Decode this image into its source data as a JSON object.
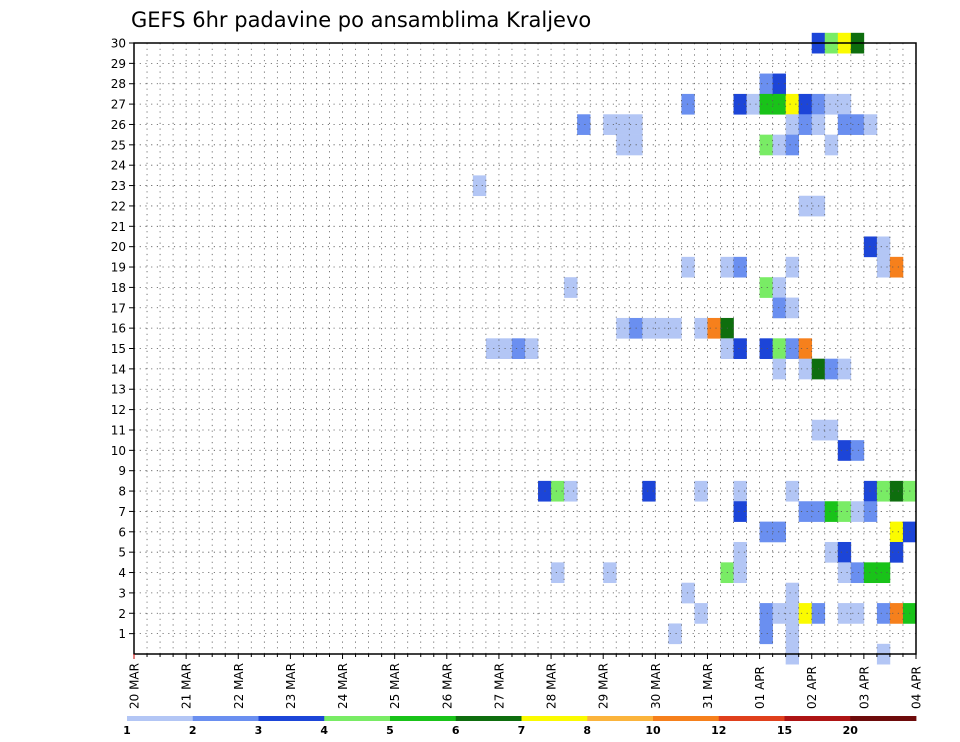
{
  "chart_data": {
    "type": "heatmap",
    "title": "GEFS 6hr padavine po ansamblima Kraljevo",
    "xlabel": "",
    "ylabel": "",
    "y_members": [
      1,
      30
    ],
    "y_ticks": [
      "1",
      "2",
      "3",
      "4",
      "5",
      "6",
      "7",
      "8",
      "9",
      "10",
      "11",
      "12",
      "13",
      "14",
      "15",
      "16",
      "17",
      "18",
      "19",
      "20",
      "21",
      "22",
      "23",
      "24",
      "25",
      "26",
      "27",
      "28",
      "29",
      "30"
    ],
    "x_ticks": [
      "20 MAR",
      "21 MAR",
      "22 MAR",
      "23 MAR",
      "24 MAR",
      "25 MAR",
      "26 MAR",
      "27 MAR",
      "28 MAR",
      "29 MAR",
      "30 MAR",
      "31 MAR",
      "01 APR",
      "02 APR",
      "03 APR",
      "04 APR"
    ],
    "time_steps": 60,
    "steps_per_day": 4,
    "grid": true,
    "legend": "bottom",
    "colorbar": {
      "labels": [
        "1",
        "2",
        "3",
        "4",
        "5",
        "6",
        "7",
        "8",
        "10",
        "12",
        "15",
        "20"
      ],
      "colors": [
        "#b3c6f5",
        "#6a8ff0",
        "#1c45d8",
        "#79ec65",
        "#19c319",
        "#0e6e0e",
        "#fbfb00",
        "#fbb43c",
        "#f6801c",
        "#e0401c",
        "#ae1414",
        "#6e0b0b"
      ]
    },
    "cells": [
      {
        "member": 30,
        "step": 52,
        "value": 3
      },
      {
        "member": 30,
        "step": 53,
        "value": 4
      },
      {
        "member": 30,
        "step": 54,
        "value": 7
      },
      {
        "member": 30,
        "step": 55,
        "value": 6
      },
      {
        "member": 28,
        "step": 48,
        "value": 2
      },
      {
        "member": 28,
        "step": 49,
        "value": 3
      },
      {
        "member": 27,
        "step": 42,
        "value": 2
      },
      {
        "member": 27,
        "step": 46,
        "value": 3
      },
      {
        "member": 27,
        "step": 47,
        "value": 1
      },
      {
        "member": 27,
        "step": 48,
        "value": 5
      },
      {
        "member": 27,
        "step": 49,
        "value": 5
      },
      {
        "member": 27,
        "step": 50,
        "value": 7
      },
      {
        "member": 27,
        "step": 51,
        "value": 3
      },
      {
        "member": 27,
        "step": 52,
        "value": 2
      },
      {
        "member": 27,
        "step": 53,
        "value": 1
      },
      {
        "member": 27,
        "step": 54,
        "value": 1
      },
      {
        "member": 26,
        "step": 34,
        "value": 2
      },
      {
        "member": 26,
        "step": 36,
        "value": 1
      },
      {
        "member": 26,
        "step": 37,
        "value": 1
      },
      {
        "member": 26,
        "step": 38,
        "value": 1
      },
      {
        "member": 26,
        "step": 50,
        "value": 1
      },
      {
        "member": 26,
        "step": 51,
        "value": 2
      },
      {
        "member": 26,
        "step": 52,
        "value": 1
      },
      {
        "member": 26,
        "step": 54,
        "value": 2
      },
      {
        "member": 26,
        "step": 55,
        "value": 2
      },
      {
        "member": 26,
        "step": 56,
        "value": 1
      },
      {
        "member": 25,
        "step": 37,
        "value": 1
      },
      {
        "member": 25,
        "step": 38,
        "value": 1
      },
      {
        "member": 25,
        "step": 48,
        "value": 4
      },
      {
        "member": 25,
        "step": 49,
        "value": 1
      },
      {
        "member": 25,
        "step": 50,
        "value": 2
      },
      {
        "member": 25,
        "step": 53,
        "value": 1
      },
      {
        "member": 23,
        "step": 26,
        "value": 1
      },
      {
        "member": 22,
        "step": 51,
        "value": 1
      },
      {
        "member": 22,
        "step": 52,
        "value": 1
      },
      {
        "member": 20,
        "step": 56,
        "value": 3
      },
      {
        "member": 20,
        "step": 57,
        "value": 1
      },
      {
        "member": 19,
        "step": 42,
        "value": 1
      },
      {
        "member": 19,
        "step": 45,
        "value": 1
      },
      {
        "member": 19,
        "step": 46,
        "value": 2
      },
      {
        "member": 19,
        "step": 50,
        "value": 1
      },
      {
        "member": 19,
        "step": 57,
        "value": 1
      },
      {
        "member": 19,
        "step": 58,
        "value": 10
      },
      {
        "member": 18,
        "step": 33,
        "value": 1
      },
      {
        "member": 18,
        "step": 48,
        "value": 4
      },
      {
        "member": 18,
        "step": 49,
        "value": 1
      },
      {
        "member": 17,
        "step": 49,
        "value": 2
      },
      {
        "member": 17,
        "step": 50,
        "value": 1
      },
      {
        "member": 16,
        "step": 37,
        "value": 1
      },
      {
        "member": 16,
        "step": 38,
        "value": 2
      },
      {
        "member": 16,
        "step": 39,
        "value": 1
      },
      {
        "member": 16,
        "step": 40,
        "value": 1
      },
      {
        "member": 16,
        "step": 41,
        "value": 1
      },
      {
        "member": 16,
        "step": 43,
        "value": 1
      },
      {
        "member": 16,
        "step": 44,
        "value": 10
      },
      {
        "member": 16,
        "step": 45,
        "value": 6
      },
      {
        "member": 15,
        "step": 27,
        "value": 1
      },
      {
        "member": 15,
        "step": 28,
        "value": 1
      },
      {
        "member": 15,
        "step": 29,
        "value": 2
      },
      {
        "member": 15,
        "step": 30,
        "value": 1
      },
      {
        "member": 15,
        "step": 45,
        "value": 1
      },
      {
        "member": 15,
        "step": 46,
        "value": 3
      },
      {
        "member": 15,
        "step": 48,
        "value": 3
      },
      {
        "member": 15,
        "step": 49,
        "value": 4
      },
      {
        "member": 15,
        "step": 50,
        "value": 2
      },
      {
        "member": 15,
        "step": 51,
        "value": 10
      },
      {
        "member": 14,
        "step": 49,
        "value": 1
      },
      {
        "member": 14,
        "step": 51,
        "value": 1
      },
      {
        "member": 14,
        "step": 52,
        "value": 6
      },
      {
        "member": 14,
        "step": 53,
        "value": 2
      },
      {
        "member": 14,
        "step": 54,
        "value": 1
      },
      {
        "member": 11,
        "step": 52,
        "value": 1
      },
      {
        "member": 11,
        "step": 53,
        "value": 1
      },
      {
        "member": 10,
        "step": 54,
        "value": 3
      },
      {
        "member": 10,
        "step": 55,
        "value": 2
      },
      {
        "member": 8,
        "step": 31,
        "value": 3
      },
      {
        "member": 8,
        "step": 32,
        "value": 4
      },
      {
        "member": 8,
        "step": 33,
        "value": 1
      },
      {
        "member": 8,
        "step": 39,
        "value": 3
      },
      {
        "member": 8,
        "step": 43,
        "value": 1
      },
      {
        "member": 8,
        "step": 46,
        "value": 1
      },
      {
        "member": 8,
        "step": 50,
        "value": 1
      },
      {
        "member": 8,
        "step": 56,
        "value": 3
      },
      {
        "member": 8,
        "step": 57,
        "value": 4
      },
      {
        "member": 8,
        "step": 58,
        "value": 6
      },
      {
        "member": 8,
        "step": 59,
        "value": 4
      },
      {
        "member": 7,
        "step": 46,
        "value": 3
      },
      {
        "member": 7,
        "step": 51,
        "value": 2
      },
      {
        "member": 7,
        "step": 52,
        "value": 2
      },
      {
        "member": 7,
        "step": 53,
        "value": 5
      },
      {
        "member": 7,
        "step": 54,
        "value": 4
      },
      {
        "member": 7,
        "step": 55,
        "value": 1
      },
      {
        "member": 7,
        "step": 56,
        "value": 2
      },
      {
        "member": 6,
        "step": 48,
        "value": 2
      },
      {
        "member": 6,
        "step": 49,
        "value": 2
      },
      {
        "member": 6,
        "step": 58,
        "value": 7
      },
      {
        "member": 6,
        "step": 59,
        "value": 3
      },
      {
        "member": 5,
        "step": 46,
        "value": 1
      },
      {
        "member": 5,
        "step": 53,
        "value": 1
      },
      {
        "member": 5,
        "step": 54,
        "value": 3
      },
      {
        "member": 5,
        "step": 58,
        "value": 3
      },
      {
        "member": 4,
        "step": 32,
        "value": 1
      },
      {
        "member": 4,
        "step": 36,
        "value": 1
      },
      {
        "member": 4,
        "step": 45,
        "value": 4
      },
      {
        "member": 4,
        "step": 46,
        "value": 1
      },
      {
        "member": 4,
        "step": 54,
        "value": 1
      },
      {
        "member": 4,
        "step": 55,
        "value": 2
      },
      {
        "member": 4,
        "step": 56,
        "value": 5
      },
      {
        "member": 4,
        "step": 57,
        "value": 5
      },
      {
        "member": 3,
        "step": 42,
        "value": 1
      },
      {
        "member": 3,
        "step": 50,
        "value": 1
      },
      {
        "member": 2,
        "step": 43,
        "value": 1
      },
      {
        "member": 2,
        "step": 48,
        "value": 2
      },
      {
        "member": 2,
        "step": 49,
        "value": 1
      },
      {
        "member": 2,
        "step": 50,
        "value": 1
      },
      {
        "member": 2,
        "step": 51,
        "value": 7
      },
      {
        "member": 2,
        "step": 52,
        "value": 2
      },
      {
        "member": 2,
        "step": 54,
        "value": 1
      },
      {
        "member": 2,
        "step": 55,
        "value": 1
      },
      {
        "member": 2,
        "step": 57,
        "value": 2
      },
      {
        "member": 2,
        "step": 58,
        "value": 10
      },
      {
        "member": 2,
        "step": 59,
        "value": 5
      },
      {
        "member": 1,
        "step": 41,
        "value": 1
      },
      {
        "member": 1,
        "step": 48,
        "value": 2
      },
      {
        "member": 1,
        "step": 50,
        "value": 1
      },
      {
        "member": 0,
        "step": 50,
        "value": 1
      },
      {
        "member": 0,
        "step": 57,
        "value": 1
      }
    ]
  }
}
